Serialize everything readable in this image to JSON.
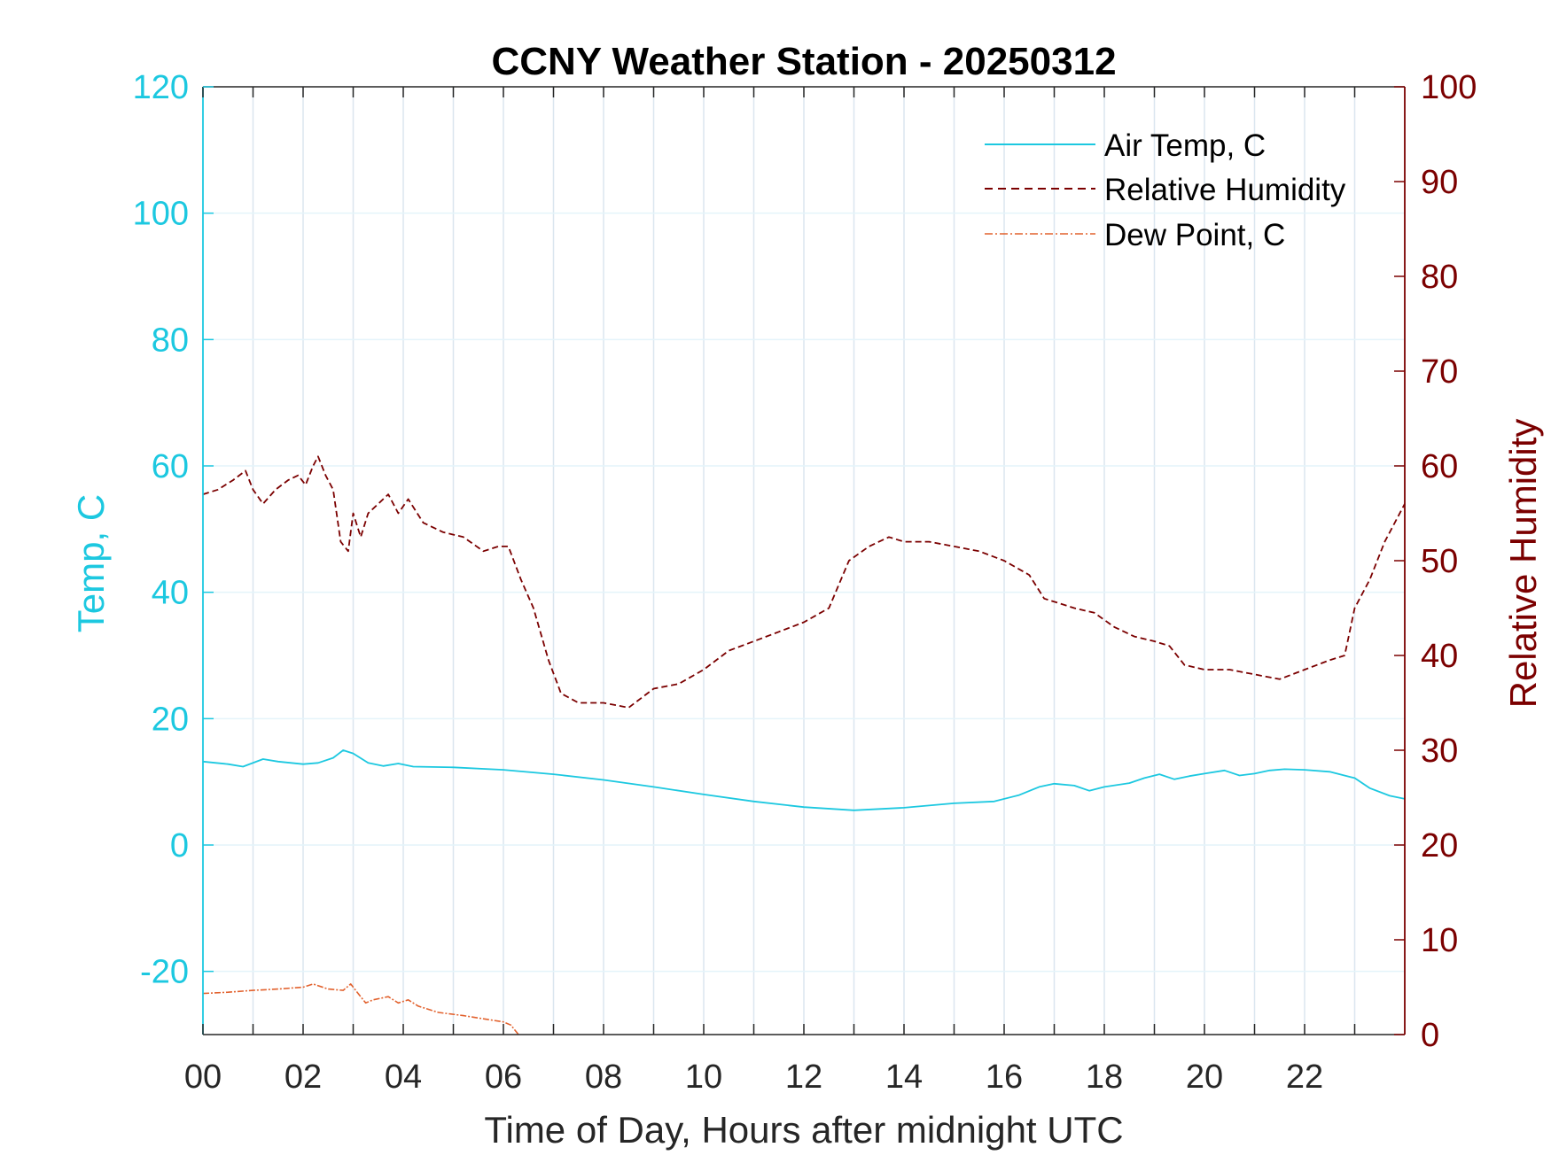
{
  "chart_data": {
    "type": "line",
    "title": "CCNY Weather Station - 20250312",
    "xlabel": "Time of Day, Hours after midnight UTC",
    "ylabel_left": "Temp, C",
    "ylabel_right": "Relative Humidity",
    "xlim": [
      0,
      24
    ],
    "ylim_left": [
      -30,
      120
    ],
    "ylim_right": [
      0,
      100
    ],
    "x_ticks": [
      "00",
      "02",
      "04",
      "06",
      "08",
      "10",
      "12",
      "14",
      "16",
      "18",
      "20",
      "22"
    ],
    "y_ticks_left": [
      "-20",
      "0",
      "20",
      "40",
      "60",
      "80",
      "100",
      "120"
    ],
    "y_ticks_right": [
      "0",
      "10",
      "20",
      "30",
      "40",
      "50",
      "60",
      "70",
      "80",
      "90",
      "100"
    ],
    "grid": true,
    "legend_position": "top-right",
    "colors": {
      "air_temp": "#1cc8e0",
      "humidity": "#7b0000",
      "dew_point": "#e2622e",
      "left_axis": "#1cc8e0",
      "right_axis": "#7b0000",
      "grid": "#dbe6ef"
    },
    "series": [
      {
        "name": "Air Temp, C",
        "axis": "left",
        "style": "solid",
        "x": [
          0,
          0.5,
          0.8,
          1.2,
          1.5,
          2,
          2.3,
          2.6,
          2.8,
          3,
          3.3,
          3.6,
          3.9,
          4.2,
          5,
          6,
          7,
          8,
          9,
          10,
          11,
          12,
          13,
          14,
          15,
          15.8,
          16.3,
          16.7,
          17,
          17.4,
          17.7,
          18,
          18.5,
          18.8,
          19.1,
          19.4,
          19.7,
          20,
          20.4,
          20.7,
          21,
          21.3,
          21.6,
          22,
          22.5,
          23,
          23.3,
          23.7,
          24
        ],
        "y": [
          13.2,
          12.8,
          12.4,
          13.6,
          13.2,
          12.8,
          13.0,
          13.8,
          15.0,
          14.5,
          13.0,
          12.5,
          12.9,
          12.4,
          12.3,
          11.9,
          11.2,
          10.3,
          9.2,
          8.0,
          6.9,
          6.0,
          5.5,
          5.9,
          6.6,
          6.9,
          7.9,
          9.2,
          9.7,
          9.4,
          8.6,
          9.2,
          9.8,
          10.6,
          11.2,
          10.4,
          10.9,
          11.3,
          11.8,
          11.0,
          11.3,
          11.8,
          12.0,
          11.9,
          11.6,
          10.6,
          9.0,
          7.8,
          7.3
        ]
      },
      {
        "name": "Relative Humidity",
        "axis": "right",
        "style": "dashed",
        "x": [
          0,
          0.3,
          0.6,
          0.85,
          1.0,
          1.2,
          1.45,
          1.7,
          1.9,
          2.05,
          2.2,
          2.3,
          2.45,
          2.6,
          2.75,
          2.9,
          3.0,
          3.15,
          3.3,
          3.5,
          3.7,
          3.9,
          4.1,
          4.4,
          4.8,
          5.2,
          5.6,
          5.9,
          6.1,
          6.35,
          6.6,
          6.9,
          7.15,
          7.5,
          8.0,
          8.5,
          9.0,
          9.5,
          10.0,
          10.5,
          11.0,
          11.5,
          12.0,
          12.5,
          12.9,
          13.3,
          13.7,
          14.0,
          14.5,
          15.0,
          15.5,
          16.0,
          16.5,
          16.8,
          17.1,
          17.4,
          17.8,
          18.2,
          18.6,
          19.0,
          19.3,
          19.6,
          20.0,
          20.5,
          21.0,
          21.5,
          22.0,
          22.5,
          22.8,
          23.0,
          23.3,
          23.6,
          24.0
        ],
        "y": [
          57,
          57.5,
          58.5,
          59.5,
          57.5,
          56,
          57.5,
          58.5,
          59,
          58,
          60,
          61,
          59,
          57.5,
          52,
          51,
          55,
          52.5,
          55,
          56,
          57,
          55,
          56.5,
          54,
          53,
          52.5,
          51,
          51.5,
          51.5,
          48,
          45,
          39.5,
          36,
          35,
          35,
          34.5,
          36.5,
          37,
          38.5,
          40.5,
          41.5,
          42.5,
          43.5,
          45,
          50,
          51.5,
          52.5,
          52,
          52,
          51.5,
          51,
          50,
          48.5,
          46,
          45.5,
          45,
          44.5,
          43,
          42,
          41.5,
          41,
          39,
          38.5,
          38.5,
          38,
          37.5,
          38.5,
          39.5,
          40,
          45,
          48,
          52,
          56
        ]
      },
      {
        "name": "Dew Point, C",
        "axis": "left",
        "style": "dash-dot",
        "x": [
          0,
          0.5,
          1.0,
          1.5,
          2.0,
          2.2,
          2.5,
          2.8,
          2.95,
          3.1,
          3.25,
          3.4,
          3.7,
          3.9,
          4.1,
          4.3,
          4.7,
          5.2,
          5.6,
          6.0,
          6.15,
          6.3
        ],
        "y": [
          -23.5,
          -23.3,
          -23.0,
          -22.8,
          -22.5,
          -22.0,
          -22.8,
          -23.0,
          -22.0,
          -23.5,
          -25.0,
          -24.5,
          -24.0,
          -25.0,
          -24.5,
          -25.5,
          -26.5,
          -27.0,
          -27.5,
          -28.0,
          -28.5,
          -30.0
        ]
      }
    ]
  }
}
